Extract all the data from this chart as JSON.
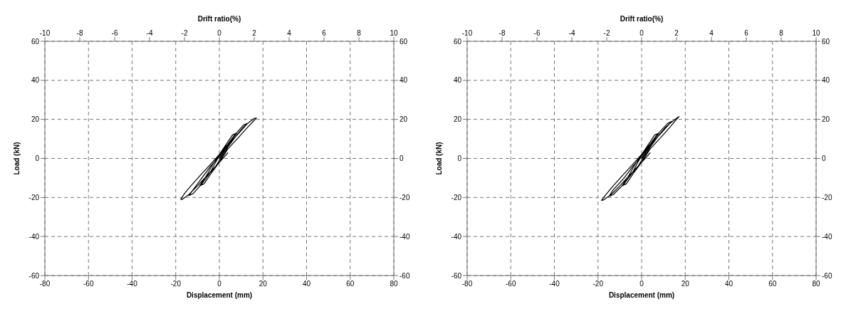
{
  "chart_data": [
    {
      "type": "line",
      "xlabel": "Displacement (mm)",
      "ylabel": "Load (kN)",
      "x2label": "Drift ratio(%)",
      "xlim": [
        -80,
        80
      ],
      "xticks": [
        -80,
        -60,
        -40,
        -20,
        0,
        20,
        40,
        60,
        80
      ],
      "ylim": [
        -60,
        60
      ],
      "yticks": [
        -60,
        -40,
        -20,
        0,
        20,
        40,
        60
      ],
      "x2lim": [
        -10,
        10
      ],
      "x2ticks": [
        -10,
        -8,
        -6,
        -4,
        -2,
        0,
        2,
        4,
        6,
        8,
        10
      ],
      "y2lim": [
        -60,
        60
      ],
      "y2ticks": [
        -60,
        -40,
        -20,
        0,
        20,
        40,
        60
      ],
      "grid": true,
      "marker": "none",
      "line_style": "solid",
      "series": [
        {
          "color": "#000000",
          "x": [
            0,
            2,
            4,
            3,
            0,
            -2,
            -4,
            -3,
            0,
            3,
            6,
            8,
            6,
            3,
            0,
            -3,
            -6,
            -9,
            -7,
            -4,
            0,
            4,
            8,
            11,
            13,
            11,
            7,
            3,
            0,
            -4,
            -8,
            -12,
            -14,
            -12,
            -8,
            -4,
            0,
            4,
            9,
            13,
            16,
            17,
            16,
            13,
            9,
            4,
            0,
            -4,
            -9,
            -13,
            -16,
            -17.7,
            -17,
            -14,
            -10,
            -5,
            0,
            4
          ],
          "values": [
            0,
            3.5,
            7,
            6.5,
            1.5,
            -2.5,
            -7,
            -6.5,
            -1,
            5,
            10,
            13,
            12,
            7,
            2,
            -3,
            -9,
            -14,
            -13,
            -8,
            -2,
            6,
            12,
            16,
            18,
            17,
            12,
            6,
            1,
            -4,
            -10,
            -16,
            -19,
            -18,
            -13,
            -7,
            -2,
            5,
            11,
            16,
            19.5,
            20.7,
            20.5,
            18,
            13,
            7,
            2,
            -3,
            -9,
            -14,
            -18,
            -21,
            -21,
            -18.5,
            -14,
            -8,
            -2,
            3
          ]
        }
      ]
    },
    {
      "type": "line",
      "xlabel": "Displacement (mm)",
      "ylabel": "Load (kN)",
      "x2label": "Drift ratio(%)",
      "xlim": [
        -80,
        80
      ],
      "xticks": [
        -80,
        -60,
        -40,
        -20,
        0,
        20,
        40,
        60,
        80
      ],
      "ylim": [
        -60,
        60
      ],
      "yticks": [
        -60,
        -40,
        -20,
        0,
        20,
        40,
        60
      ],
      "x2lim": [
        -10,
        10
      ],
      "x2ticks": [
        -10,
        -8,
        -6,
        -4,
        -2,
        0,
        2,
        4,
        6,
        8,
        10
      ],
      "y2lim": [
        -60,
        60
      ],
      "y2ticks": [
        -60,
        -40,
        -20,
        0,
        20,
        40,
        60
      ],
      "grid": true,
      "marker": "none",
      "line_style": "solid",
      "series": [
        {
          "color": "#000000",
          "x": [
            0,
            2,
            4,
            3,
            0,
            -2,
            -4,
            -3,
            0,
            3,
            6,
            8,
            6,
            3,
            0,
            -3,
            -6,
            -9,
            -7,
            -4,
            0,
            4,
            8,
            11,
            14,
            12,
            7,
            3,
            0,
            -4,
            -8,
            -13,
            -15,
            -13,
            -8,
            -4,
            0,
            4,
            9,
            13,
            16,
            17.2,
            16.5,
            13,
            9,
            4,
            0,
            -4,
            -9,
            -13,
            -16,
            -18.4,
            -17.5,
            -14,
            -10,
            -5,
            0,
            4
          ],
          "values": [
            0,
            3.5,
            7,
            6.5,
            1.5,
            -2.5,
            -7,
            -6.5,
            -1,
            5,
            10,
            13,
            12,
            7,
            2,
            -3,
            -9,
            -14,
            -13,
            -8,
            -2,
            6,
            12,
            16,
            19,
            18,
            12,
            6,
            1,
            -4,
            -10,
            -16,
            -19.5,
            -18.5,
            -13,
            -7,
            -2,
            5,
            11,
            16,
            20,
            21.4,
            21,
            18,
            13,
            7,
            2,
            -3,
            -9,
            -14,
            -18,
            -21.5,
            -21.3,
            -18.5,
            -14,
            -8,
            -2,
            3
          ]
        }
      ]
    }
  ]
}
